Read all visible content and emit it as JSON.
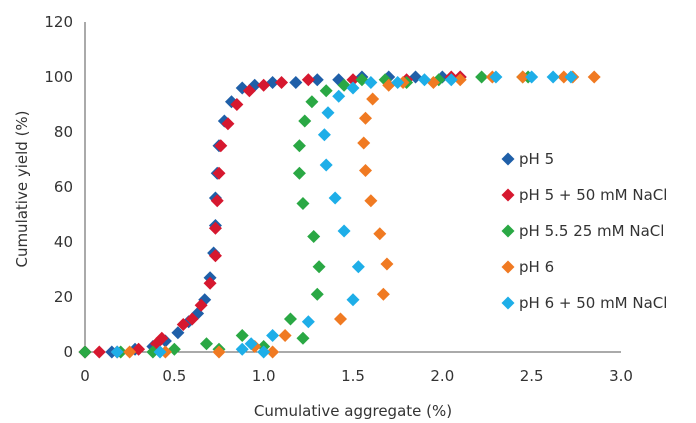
{
  "chart_data": {
    "type": "scatter",
    "title": "",
    "xlabel": "Cumulative aggregate (%)",
    "ylabel": "Cumulative yield (%)",
    "xlim": [
      0,
      3.0
    ],
    "ylim": [
      0,
      120
    ],
    "xticks": [
      "0",
      "0.5",
      "1.0",
      "1.5",
      "2.0",
      "2.5",
      "3.0"
    ],
    "xtick_values": [
      0,
      0.5,
      1.0,
      1.5,
      2.0,
      2.5,
      3.0
    ],
    "yticks": [
      "0",
      "20",
      "40",
      "60",
      "80",
      "100",
      "120"
    ],
    "ytick_values": [
      0,
      20,
      40,
      60,
      80,
      100,
      120
    ],
    "grid": false,
    "legend_position": "right",
    "marker": "diamond",
    "series": [
      {
        "name": "pH 5",
        "color": "#1f5fa8",
        "points": [
          [
            0.0,
            0
          ],
          [
            0.15,
            0
          ],
          [
            0.28,
            1
          ],
          [
            0.38,
            2
          ],
          [
            0.45,
            4
          ],
          [
            0.52,
            7
          ],
          [
            0.58,
            11
          ],
          [
            0.63,
            14
          ],
          [
            0.67,
            19
          ],
          [
            0.7,
            27
          ],
          [
            0.72,
            36
          ],
          [
            0.73,
            46
          ],
          [
            0.73,
            56
          ],
          [
            0.74,
            65
          ],
          [
            0.75,
            75
          ],
          [
            0.78,
            84
          ],
          [
            0.82,
            91
          ],
          [
            0.88,
            96
          ],
          [
            0.95,
            97
          ],
          [
            1.05,
            98
          ],
          [
            1.18,
            98
          ],
          [
            1.3,
            99
          ],
          [
            1.42,
            99
          ],
          [
            1.55,
            100
          ],
          [
            1.7,
            100
          ],
          [
            1.85,
            100
          ],
          [
            2.0,
            100
          ],
          [
            2.1,
            100
          ]
        ]
      },
      {
        "name": "pH 5 + 50 mM NaCl",
        "color": "#d6182f",
        "points": [
          [
            0.0,
            0
          ],
          [
            0.08,
            0
          ],
          [
            0.18,
            0
          ],
          [
            0.3,
            1
          ],
          [
            0.4,
            3
          ],
          [
            0.43,
            5
          ],
          [
            0.55,
            10
          ],
          [
            0.6,
            12
          ],
          [
            0.65,
            17
          ],
          [
            0.7,
            25
          ],
          [
            0.73,
            35
          ],
          [
            0.73,
            45
          ],
          [
            0.74,
            55
          ],
          [
            0.75,
            65
          ],
          [
            0.76,
            75
          ],
          [
            0.8,
            83
          ],
          [
            0.85,
            90
          ],
          [
            0.92,
            95
          ],
          [
            1.0,
            97
          ],
          [
            1.1,
            98
          ],
          [
            1.25,
            99
          ],
          [
            1.5,
            99
          ],
          [
            1.8,
            99
          ],
          [
            2.05,
            100
          ],
          [
            2.1,
            100
          ]
        ]
      },
      {
        "name": "pH 5.5 25 mM NaCl",
        "color": "#2aa844",
        "points": [
          [
            0.0,
            0
          ],
          [
            0.2,
            0
          ],
          [
            0.38,
            0
          ],
          [
            0.5,
            1
          ],
          [
            0.68,
            3
          ],
          [
            0.75,
            1
          ],
          [
            0.88,
            6
          ],
          [
            1.0,
            2
          ],
          [
            1.15,
            12
          ],
          [
            1.22,
            5
          ],
          [
            1.3,
            21
          ],
          [
            1.31,
            31
          ],
          [
            1.28,
            42
          ],
          [
            1.22,
            54
          ],
          [
            1.2,
            65
          ],
          [
            1.2,
            75
          ],
          [
            1.23,
            84
          ],
          [
            1.27,
            91
          ],
          [
            1.35,
            95
          ],
          [
            1.45,
            97
          ],
          [
            1.55,
            99
          ],
          [
            1.68,
            99
          ],
          [
            1.8,
            98
          ],
          [
            1.98,
            99
          ],
          [
            2.22,
            100
          ],
          [
            2.45,
            100
          ],
          [
            2.48,
            100
          ]
        ]
      },
      {
        "name": "pH 6",
        "color": "#f07a22",
        "points": [
          [
            0.25,
            0
          ],
          [
            0.45,
            0
          ],
          [
            0.75,
            0
          ],
          [
            0.95,
            2
          ],
          [
            1.05,
            0
          ],
          [
            1.12,
            6
          ],
          [
            1.43,
            12
          ],
          [
            1.67,
            21
          ],
          [
            1.69,
            32
          ],
          [
            1.65,
            43
          ],
          [
            1.6,
            55
          ],
          [
            1.57,
            66
          ],
          [
            1.56,
            76
          ],
          [
            1.57,
            85
          ],
          [
            1.61,
            92
          ],
          [
            1.7,
            97
          ],
          [
            1.78,
            98
          ],
          [
            1.95,
            98
          ],
          [
            2.1,
            99
          ],
          [
            2.28,
            100
          ],
          [
            2.45,
            100
          ],
          [
            2.68,
            100
          ],
          [
            2.73,
            100
          ],
          [
            2.85,
            100
          ]
        ]
      },
      {
        "name": "pH 6 + 50 mM NaCl",
        "color": "#1eaee8",
        "points": [
          [
            0.18,
            0
          ],
          [
            0.42,
            0
          ],
          [
            0.88,
            1
          ],
          [
            0.93,
            3
          ],
          [
            1.0,
            0
          ],
          [
            1.05,
            6
          ],
          [
            1.25,
            11
          ],
          [
            1.5,
            19
          ],
          [
            1.53,
            31
          ],
          [
            1.45,
            44
          ],
          [
            1.4,
            56
          ],
          [
            1.35,
            68
          ],
          [
            1.34,
            79
          ],
          [
            1.36,
            87
          ],
          [
            1.42,
            93
          ],
          [
            1.5,
            96
          ],
          [
            1.6,
            98
          ],
          [
            1.75,
            98
          ],
          [
            1.9,
            99
          ],
          [
            2.05,
            99
          ],
          [
            2.3,
            100
          ],
          [
            2.5,
            100
          ],
          [
            2.62,
            100
          ],
          [
            2.72,
            100
          ]
        ]
      }
    ]
  }
}
